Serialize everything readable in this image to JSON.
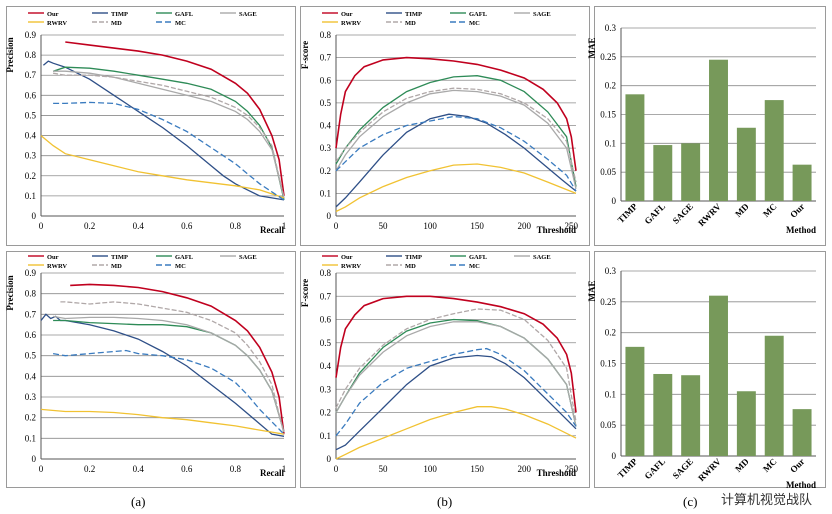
{
  "captions": [
    "(a)",
    "(b)",
    "(c)"
  ],
  "watermark": "计算机视觉战队",
  "colors": {
    "Our": "#c0001e",
    "TIMP": "#2e4f87",
    "GAFL": "#2e8b57",
    "SAGE": "#a9a9a9",
    "RWRV": "#f1c232",
    "MD": "#b0a8a8",
    "MC": "#3a7bbf",
    "bar": "#77995a"
  },
  "legend_names": [
    "Our",
    "TIMP",
    "GAFL",
    "SAGE",
    "RWRV",
    "MD",
    "MC"
  ],
  "chart_data": [
    {
      "type": "line",
      "panel": "a",
      "row": 1,
      "xlabel": "Recall",
      "ylabel": "Precision",
      "xlim": [
        0,
        1
      ],
      "ylim": [
        0,
        0.9
      ],
      "xticks": [
        "0",
        "0.2",
        "0.4",
        "0.6",
        "0.8",
        "1"
      ],
      "yticks": [
        "0",
        "0.1",
        "0.2",
        "0.3",
        "0.4",
        "0.5",
        "0.6",
        "0.7",
        "0.8",
        "0.9"
      ],
      "series": [
        {
          "name": "Our",
          "x": [
            0.1,
            0.2,
            0.3,
            0.4,
            0.5,
            0.6,
            0.7,
            0.8,
            0.85,
            0.9,
            0.95,
            0.98,
            1.0
          ],
          "y": [
            0.865,
            0.85,
            0.835,
            0.82,
            0.8,
            0.77,
            0.73,
            0.66,
            0.61,
            0.53,
            0.4,
            0.28,
            0.1
          ]
        },
        {
          "name": "TIMP",
          "x": [
            0.01,
            0.03,
            0.05,
            0.1,
            0.2,
            0.3,
            0.4,
            0.5,
            0.6,
            0.7,
            0.75,
            0.8,
            0.85,
            0.9,
            0.95,
            1.0
          ],
          "y": [
            0.75,
            0.77,
            0.76,
            0.74,
            0.68,
            0.6,
            0.52,
            0.44,
            0.35,
            0.25,
            0.2,
            0.16,
            0.13,
            0.1,
            0.09,
            0.08
          ]
        },
        {
          "name": "GAFL",
          "x": [
            0.05,
            0.1,
            0.2,
            0.3,
            0.4,
            0.5,
            0.6,
            0.7,
            0.8,
            0.85,
            0.9,
            0.95,
            1.0
          ],
          "y": [
            0.72,
            0.74,
            0.735,
            0.72,
            0.7,
            0.68,
            0.66,
            0.63,
            0.57,
            0.52,
            0.45,
            0.34,
            0.08
          ]
        },
        {
          "name": "SAGE",
          "x": [
            0.05,
            0.1,
            0.2,
            0.3,
            0.4,
            0.5,
            0.6,
            0.7,
            0.8,
            0.85,
            0.9,
            0.95,
            1.0
          ],
          "y": [
            0.72,
            0.72,
            0.71,
            0.69,
            0.66,
            0.63,
            0.6,
            0.57,
            0.52,
            0.48,
            0.42,
            0.33,
            0.09
          ]
        },
        {
          "name": "RWRV",
          "x": [
            0.0,
            0.05,
            0.1,
            0.2,
            0.3,
            0.4,
            0.5,
            0.6,
            0.7,
            0.8,
            0.9,
            0.95,
            1.0
          ],
          "y": [
            0.4,
            0.35,
            0.31,
            0.28,
            0.25,
            0.22,
            0.2,
            0.18,
            0.165,
            0.15,
            0.13,
            0.11,
            0.09
          ]
        },
        {
          "name": "MD",
          "x": [
            0.05,
            0.1,
            0.2,
            0.3,
            0.4,
            0.5,
            0.6,
            0.7,
            0.8,
            0.85,
            0.9,
            0.95,
            1.0
          ],
          "y": [
            0.71,
            0.7,
            0.7,
            0.69,
            0.67,
            0.65,
            0.62,
            0.59,
            0.54,
            0.5,
            0.44,
            0.35,
            0.09
          ]
        },
        {
          "name": "MC",
          "x": [
            0.05,
            0.1,
            0.2,
            0.3,
            0.4,
            0.5,
            0.6,
            0.7,
            0.75,
            0.8,
            0.85,
            0.9,
            0.95,
            1.0
          ],
          "y": [
            0.56,
            0.56,
            0.565,
            0.56,
            0.53,
            0.48,
            0.42,
            0.34,
            0.3,
            0.26,
            0.21,
            0.16,
            0.12,
            0.08
          ]
        }
      ]
    },
    {
      "type": "line",
      "panel": "b",
      "row": 1,
      "xlabel": "Threshold",
      "ylabel": "F-score",
      "xlim": [
        0,
        255
      ],
      "ylim": [
        0,
        0.8
      ],
      "xticks": [
        "0",
        "50",
        "100",
        "150",
        "200",
        "250"
      ],
      "yticks": [
        "0",
        "0.1",
        "0.2",
        "0.3",
        "0.4",
        "0.5",
        "0.6",
        "0.7",
        "0.8"
      ],
      "series": [
        {
          "name": "Our",
          "x": [
            0,
            5,
            10,
            20,
            30,
            50,
            75,
            100,
            125,
            150,
            175,
            200,
            220,
            235,
            245,
            250,
            255
          ],
          "y": [
            0.3,
            0.45,
            0.55,
            0.62,
            0.66,
            0.69,
            0.7,
            0.695,
            0.685,
            0.67,
            0.645,
            0.61,
            0.56,
            0.5,
            0.43,
            0.35,
            0.2
          ]
        },
        {
          "name": "TIMP",
          "x": [
            0,
            10,
            25,
            50,
            75,
            100,
            120,
            140,
            160,
            180,
            200,
            220,
            240,
            255
          ],
          "y": [
            0.04,
            0.08,
            0.15,
            0.27,
            0.37,
            0.43,
            0.45,
            0.44,
            0.41,
            0.36,
            0.3,
            0.23,
            0.16,
            0.11
          ]
        },
        {
          "name": "GAFL",
          "x": [
            0,
            10,
            25,
            50,
            75,
            100,
            125,
            150,
            175,
            200,
            225,
            245,
            255
          ],
          "y": [
            0.23,
            0.3,
            0.38,
            0.48,
            0.55,
            0.59,
            0.615,
            0.62,
            0.6,
            0.55,
            0.46,
            0.35,
            0.13
          ]
        },
        {
          "name": "SAGE",
          "x": [
            0,
            10,
            25,
            50,
            75,
            100,
            125,
            150,
            175,
            200,
            225,
            245,
            255
          ],
          "y": [
            0.2,
            0.27,
            0.35,
            0.44,
            0.5,
            0.54,
            0.555,
            0.55,
            0.53,
            0.49,
            0.41,
            0.3,
            0.12
          ]
        },
        {
          "name": "RWRV",
          "x": [
            0,
            10,
            25,
            50,
            75,
            100,
            125,
            150,
            175,
            200,
            225,
            255
          ],
          "y": [
            0.02,
            0.04,
            0.08,
            0.13,
            0.17,
            0.2,
            0.225,
            0.23,
            0.215,
            0.19,
            0.15,
            0.1
          ]
        },
        {
          "name": "MD",
          "x": [
            0,
            10,
            25,
            50,
            75,
            100,
            125,
            150,
            175,
            200,
            225,
            245,
            255
          ],
          "y": [
            0.24,
            0.3,
            0.37,
            0.46,
            0.52,
            0.55,
            0.565,
            0.56,
            0.54,
            0.5,
            0.43,
            0.33,
            0.15
          ]
        },
        {
          "name": "MC",
          "x": [
            0,
            10,
            25,
            50,
            75,
            100,
            125,
            150,
            175,
            200,
            225,
            245,
            255
          ],
          "y": [
            0.2,
            0.24,
            0.3,
            0.36,
            0.4,
            0.42,
            0.44,
            0.43,
            0.39,
            0.33,
            0.25,
            0.18,
            0.11
          ]
        }
      ]
    },
    {
      "type": "bar",
      "panel": "c",
      "row": 1,
      "xlabel": "Method",
      "ylabel": "MAE",
      "categories": [
        "TIMP",
        "GAFL",
        "SAGE",
        "RWRV",
        "MD",
        "MC",
        "Our"
      ],
      "values": [
        0.185,
        0.097,
        0.1,
        0.245,
        0.127,
        0.175,
        0.063
      ],
      "ylim": [
        0,
        0.3
      ],
      "yticks": [
        "0",
        "0.05",
        "0.1",
        "0.15",
        "0.2",
        "0.25",
        "0.3"
      ]
    },
    {
      "type": "line",
      "panel": "a",
      "row": 2,
      "xlabel": "Recall",
      "ylabel": "Precision",
      "xlim": [
        0,
        1
      ],
      "ylim": [
        0,
        0.9
      ],
      "xticks": [
        "0",
        "0.2",
        "0.4",
        "0.6",
        "0.8",
        "1"
      ],
      "yticks": [
        "0",
        "0.1",
        "0.2",
        "0.3",
        "0.4",
        "0.5",
        "0.6",
        "0.7",
        "0.8",
        "0.9"
      ],
      "series": [
        {
          "name": "Our",
          "x": [
            0.12,
            0.2,
            0.3,
            0.4,
            0.5,
            0.6,
            0.7,
            0.8,
            0.85,
            0.9,
            0.95,
            0.98,
            1.0
          ],
          "y": [
            0.84,
            0.845,
            0.84,
            0.83,
            0.81,
            0.78,
            0.74,
            0.67,
            0.62,
            0.54,
            0.42,
            0.3,
            0.12
          ]
        },
        {
          "name": "TIMP",
          "x": [
            0.0,
            0.02,
            0.04,
            0.06,
            0.08,
            0.1,
            0.2,
            0.3,
            0.4,
            0.5,
            0.6,
            0.7,
            0.8,
            0.85,
            0.9,
            0.95,
            1.0
          ],
          "y": [
            0.67,
            0.7,
            0.68,
            0.69,
            0.67,
            0.67,
            0.65,
            0.62,
            0.58,
            0.52,
            0.45,
            0.36,
            0.27,
            0.22,
            0.17,
            0.12,
            0.11
          ]
        },
        {
          "name": "GAFL",
          "x": [
            0.05,
            0.1,
            0.2,
            0.3,
            0.4,
            0.5,
            0.6,
            0.7,
            0.8,
            0.85,
            0.9,
            0.95,
            1.0
          ],
          "y": [
            0.67,
            0.67,
            0.66,
            0.655,
            0.65,
            0.65,
            0.64,
            0.61,
            0.55,
            0.5,
            0.43,
            0.33,
            0.13
          ]
        },
        {
          "name": "SAGE",
          "x": [
            0.05,
            0.1,
            0.2,
            0.3,
            0.4,
            0.5,
            0.6,
            0.7,
            0.8,
            0.85,
            0.9,
            0.95,
            1.0
          ],
          "y": [
            0.69,
            0.68,
            0.685,
            0.685,
            0.68,
            0.67,
            0.65,
            0.61,
            0.55,
            0.5,
            0.43,
            0.33,
            0.13
          ]
        },
        {
          "name": "RWRV",
          "x": [
            0.0,
            0.1,
            0.2,
            0.3,
            0.4,
            0.5,
            0.6,
            0.7,
            0.8,
            0.9,
            0.95,
            1.0
          ],
          "y": [
            0.24,
            0.23,
            0.23,
            0.225,
            0.215,
            0.2,
            0.19,
            0.175,
            0.16,
            0.14,
            0.13,
            0.12
          ]
        },
        {
          "name": "MD",
          "x": [
            0.08,
            0.1,
            0.2,
            0.3,
            0.4,
            0.5,
            0.6,
            0.7,
            0.8,
            0.85,
            0.9,
            0.95,
            1.0
          ],
          "y": [
            0.76,
            0.76,
            0.75,
            0.76,
            0.75,
            0.73,
            0.71,
            0.67,
            0.61,
            0.55,
            0.47,
            0.36,
            0.12
          ]
        },
        {
          "name": "MC",
          "x": [
            0.05,
            0.1,
            0.2,
            0.3,
            0.35,
            0.4,
            0.5,
            0.6,
            0.7,
            0.8,
            0.85,
            0.9,
            0.95,
            1.0
          ],
          "y": [
            0.51,
            0.5,
            0.51,
            0.52,
            0.525,
            0.51,
            0.5,
            0.48,
            0.44,
            0.37,
            0.31,
            0.24,
            0.18,
            0.12
          ]
        }
      ]
    },
    {
      "type": "line",
      "panel": "b",
      "row": 2,
      "xlabel": "Threshold",
      "ylabel": "F-score",
      "xlim": [
        0,
        255
      ],
      "ylim": [
        0,
        0.8
      ],
      "xticks": [
        "0",
        "50",
        "100",
        "150",
        "200",
        "250"
      ],
      "yticks": [
        "0",
        "0.1",
        "0.2",
        "0.3",
        "0.4",
        "0.5",
        "0.6",
        "0.7",
        "0.8"
      ],
      "series": [
        {
          "name": "Our",
          "x": [
            0,
            5,
            10,
            20,
            30,
            50,
            75,
            100,
            125,
            150,
            175,
            200,
            220,
            235,
            245,
            250,
            255
          ],
          "y": [
            0.35,
            0.48,
            0.56,
            0.62,
            0.66,
            0.69,
            0.7,
            0.7,
            0.69,
            0.675,
            0.655,
            0.625,
            0.58,
            0.52,
            0.45,
            0.37,
            0.2
          ]
        },
        {
          "name": "TIMP",
          "x": [
            0,
            10,
            25,
            50,
            75,
            100,
            125,
            150,
            165,
            180,
            200,
            220,
            240,
            255
          ],
          "y": [
            0.04,
            0.06,
            0.12,
            0.22,
            0.32,
            0.4,
            0.435,
            0.445,
            0.44,
            0.41,
            0.35,
            0.27,
            0.19,
            0.13
          ]
        },
        {
          "name": "GAFL",
          "x": [
            0,
            10,
            25,
            50,
            75,
            100,
            125,
            150,
            175,
            200,
            225,
            245,
            255
          ],
          "y": [
            0.2,
            0.27,
            0.37,
            0.48,
            0.55,
            0.585,
            0.6,
            0.595,
            0.57,
            0.52,
            0.43,
            0.32,
            0.14
          ]
        },
        {
          "name": "SAGE",
          "x": [
            0,
            10,
            25,
            50,
            75,
            100,
            125,
            150,
            175,
            200,
            225,
            245,
            255
          ],
          "y": [
            0.2,
            0.27,
            0.36,
            0.46,
            0.53,
            0.57,
            0.59,
            0.59,
            0.57,
            0.52,
            0.43,
            0.32,
            0.14
          ]
        },
        {
          "name": "RWRV",
          "x": [
            0,
            10,
            25,
            50,
            75,
            100,
            125,
            150,
            165,
            180,
            200,
            225,
            255
          ],
          "y": [
            0.0,
            0.02,
            0.05,
            0.09,
            0.13,
            0.17,
            0.2,
            0.225,
            0.225,
            0.215,
            0.19,
            0.15,
            0.09
          ]
        },
        {
          "name": "MD",
          "x": [
            0,
            10,
            25,
            50,
            75,
            100,
            125,
            150,
            175,
            200,
            225,
            245,
            255
          ],
          "y": [
            0.22,
            0.3,
            0.39,
            0.49,
            0.56,
            0.6,
            0.625,
            0.645,
            0.64,
            0.6,
            0.51,
            0.39,
            0.16
          ]
        },
        {
          "name": "MC",
          "x": [
            0,
            10,
            25,
            50,
            75,
            100,
            125,
            150,
            160,
            175,
            200,
            225,
            245,
            255
          ],
          "y": [
            0.1,
            0.15,
            0.24,
            0.33,
            0.39,
            0.42,
            0.45,
            0.47,
            0.475,
            0.45,
            0.38,
            0.28,
            0.2,
            0.14
          ]
        }
      ]
    },
    {
      "type": "bar",
      "panel": "c",
      "row": 2,
      "xlabel": "Method",
      "ylabel": "MAE",
      "categories": [
        "TIMP",
        "GAFL",
        "SAGE",
        "RWRV",
        "MD",
        "MC",
        "Our"
      ],
      "values": [
        0.177,
        0.133,
        0.131,
        0.26,
        0.105,
        0.195,
        0.076
      ],
      "ylim": [
        0,
        0.3
      ],
      "yticks": [
        "0",
        "0.05",
        "0.1",
        "0.15",
        "0.2",
        "0.25",
        "0.3"
      ]
    }
  ]
}
